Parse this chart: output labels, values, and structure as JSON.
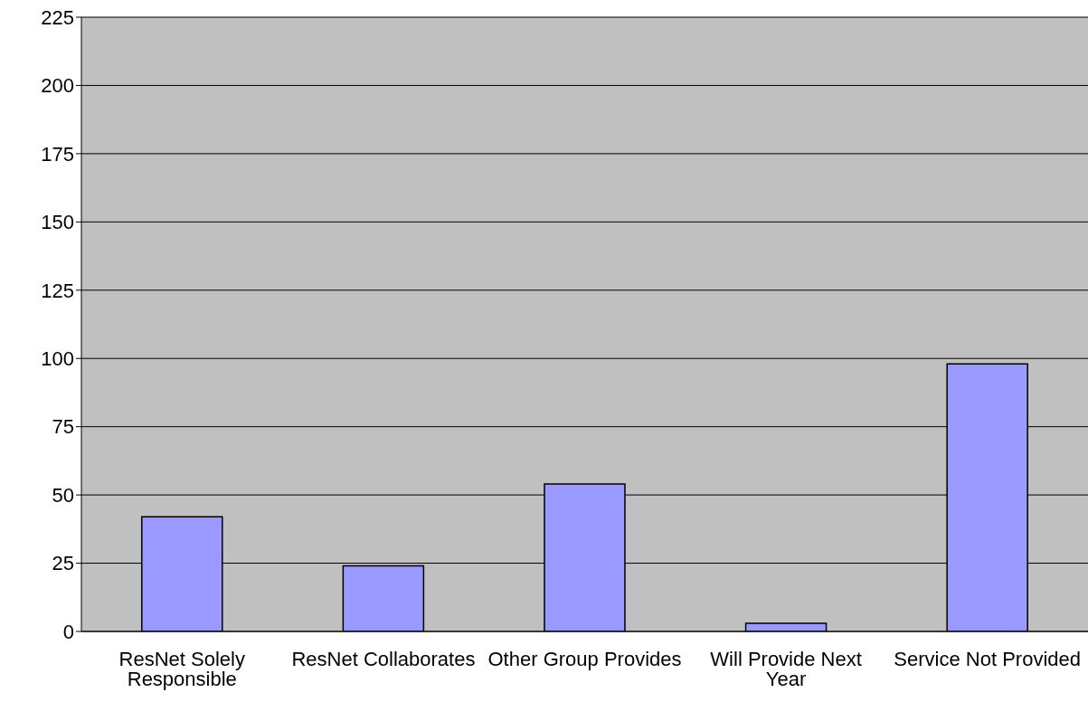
{
  "chart_data": {
    "type": "bar",
    "categories": [
      "ResNet Solely Responsible",
      "ResNet Collaborates",
      "Other Group Provides",
      "Will Provide Next Year",
      "Service Not Provided"
    ],
    "values": [
      42,
      24,
      54,
      3,
      98
    ],
    "color": "#9999ff",
    "ylim": [
      0,
      225
    ],
    "yticks": [
      0,
      25,
      50,
      75,
      100,
      125,
      150,
      175,
      200,
      225
    ],
    "grid": "y"
  }
}
